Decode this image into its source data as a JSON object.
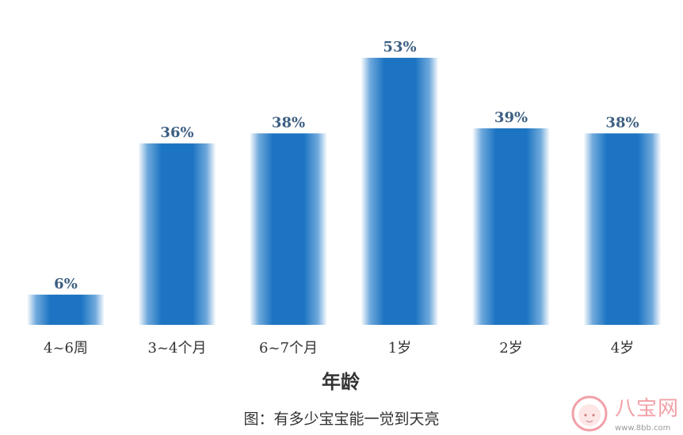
{
  "chart_data": {
    "type": "bar",
    "categories": [
      "4~6周",
      "3~4个月",
      "6~7个月",
      "1岁",
      "2岁",
      "4岁"
    ],
    "values": [
      6,
      36,
      38,
      53,
      39,
      38
    ],
    "data_labels": [
      "6%",
      "36%",
      "38%",
      "53%",
      "39%",
      "38%"
    ],
    "title": "",
    "xlabel": "年龄",
    "ylabel": "",
    "ylim": [
      0,
      60
    ],
    "grid": false,
    "unit": "%",
    "colors": {
      "bar": "#1c74c2",
      "bar_edge": "#ffffff",
      "data_label": "#3d5f82",
      "tick_label": "#333333"
    }
  },
  "caption": "图：有多少宝宝能一觉到天亮",
  "watermark": {
    "name": "八宝网",
    "url": "www.8bb.com"
  }
}
